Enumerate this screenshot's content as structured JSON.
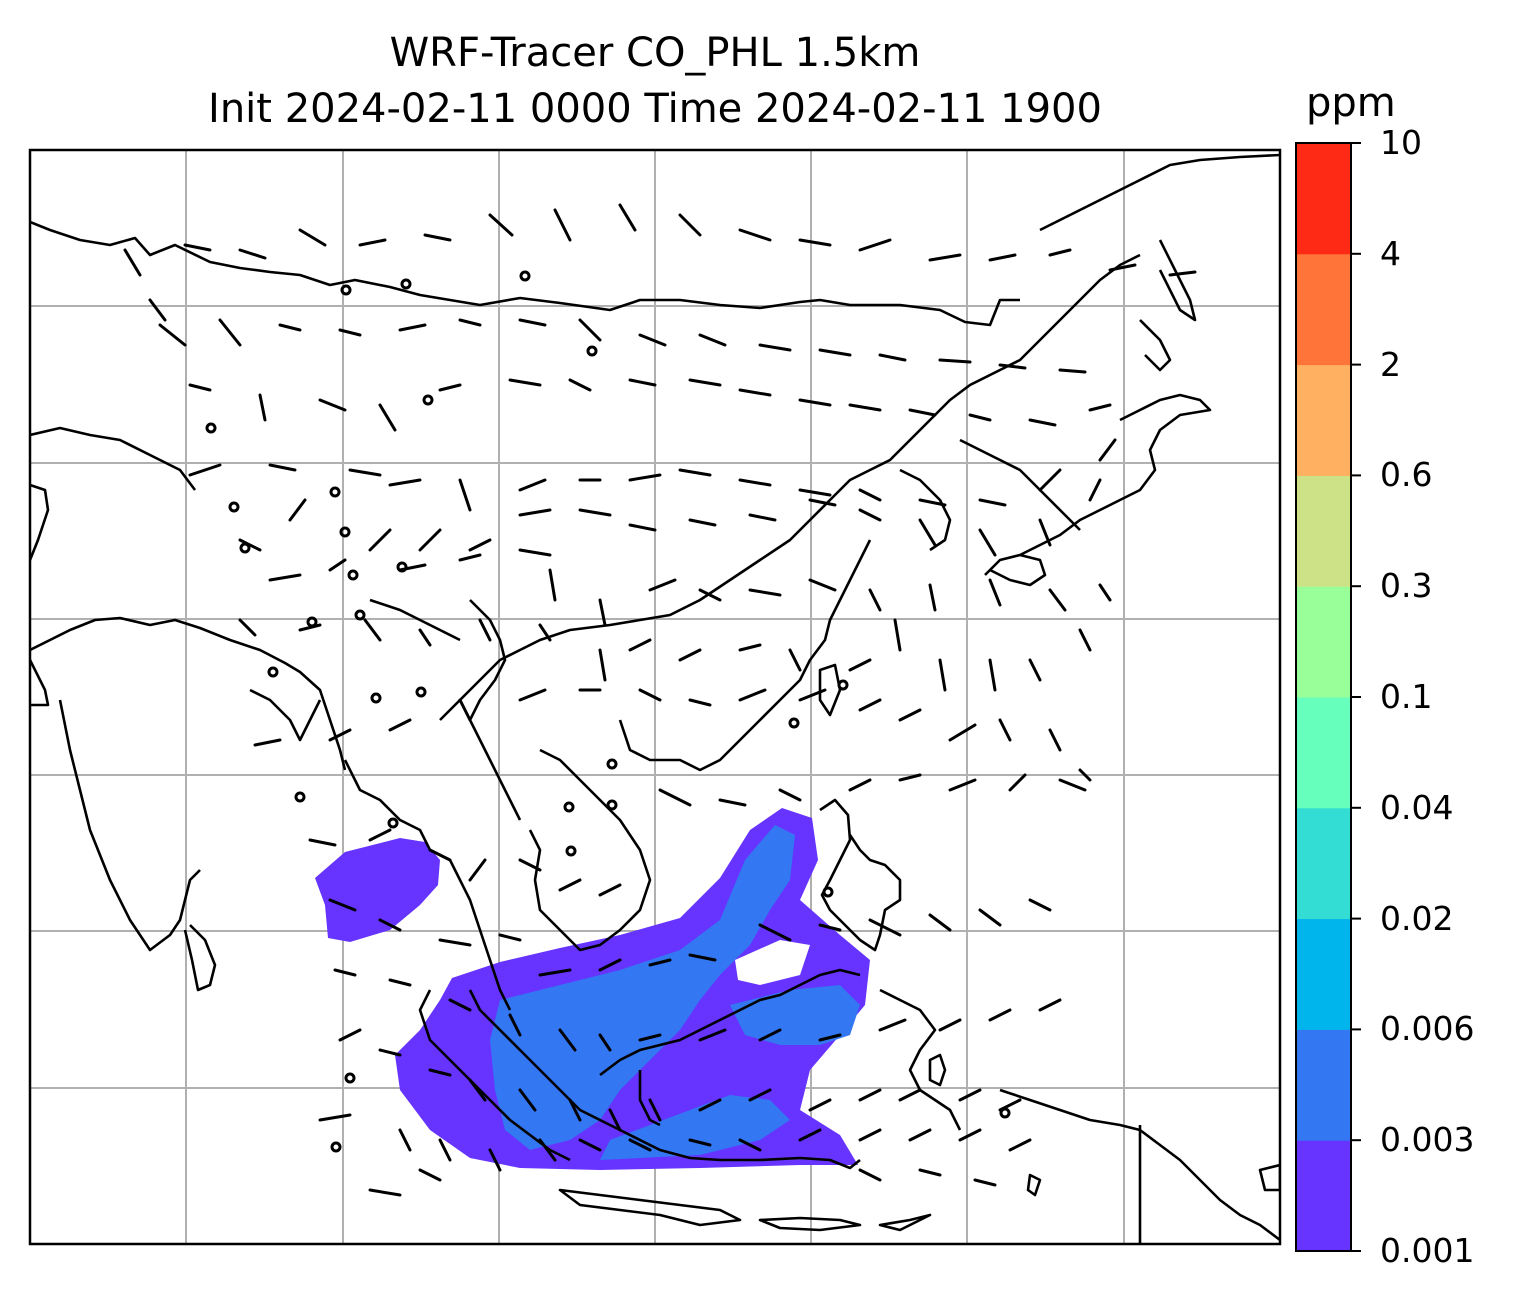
{
  "title": {
    "line1": "WRF-Tracer CO_PHL 1.5km",
    "line2": "Init 2024-02-11 0000 Time 2024-02-11 1900"
  },
  "colorbar": {
    "unit": "ppm",
    "levels": [
      "0.001",
      "0.003",
      "0.006",
      "0.02",
      "0.04",
      "0.1",
      "0.3",
      "0.6",
      "2",
      "4",
      "10"
    ],
    "colors": [
      "#6633ff",
      "#3377f2",
      "#00b4ec",
      "#33ddd4",
      "#66ffbb",
      "#99ff99",
      "#cde287",
      "#ffb060",
      "#ff7438",
      "#ff2a16"
    ]
  },
  "map": {
    "gridlines": true,
    "tracer_color_main": "#6633ff",
    "tracer_color_secondary": "#3377f2",
    "icons": [
      "coastline-lines",
      "wind-barbs",
      "calm-wind-circles"
    ]
  }
}
